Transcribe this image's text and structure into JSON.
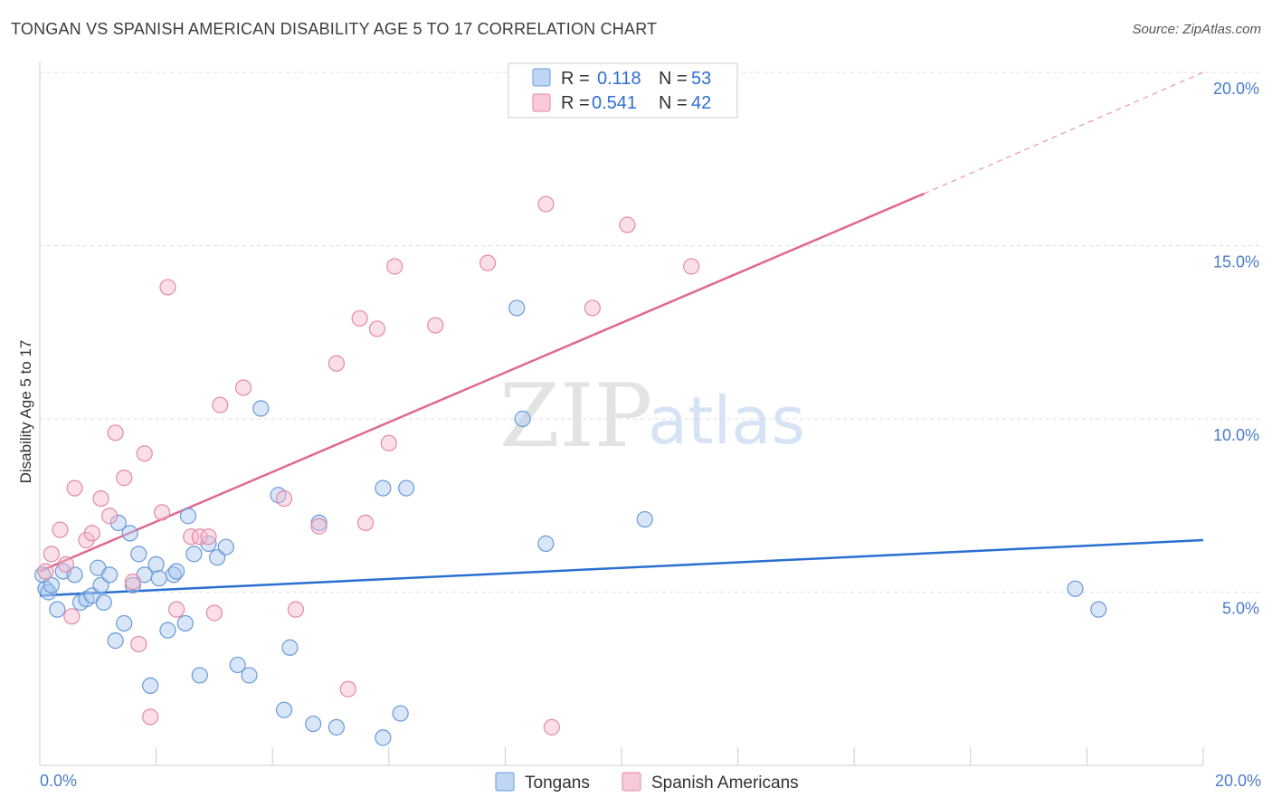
{
  "header": {
    "title": "TONGAN VS SPANISH AMERICAN DISABILITY AGE 5 TO 17 CORRELATION CHART",
    "source": "Source: ZipAtlas.com"
  },
  "watermark": {
    "zip": "ZIP",
    "atlas": "atlas"
  },
  "colors": {
    "tongans_fill": "#a8c8f0",
    "tongans_stroke": "#6a9ad8",
    "tongans_line": "#2a6fd0",
    "spanish_fill": "#f6b8cc",
    "spanish_stroke": "#e38aa6",
    "spanish_line": "#e06890",
    "tick_text": "#4a7cc9"
  },
  "legend": {
    "rows": [
      {
        "r_label": "R =",
        "r_value": "0.118",
        "n_label": "N =",
        "n_value": "53"
      },
      {
        "r_label": "R =",
        "r_value": "0.541",
        "n_label": "N =",
        "n_value": "42"
      }
    ]
  },
  "bottom_legend": {
    "tongans": "Tongans",
    "spanish": "Spanish Americans"
  },
  "chart_data": {
    "type": "scatter",
    "title": "TONGAN VS SPANISH AMERICAN DISABILITY AGE 5 TO 17 CORRELATION CHART",
    "xlabel": "",
    "ylabel": "Disability Age 5 to 17",
    "xlim": [
      0,
      20
    ],
    "ylim": [
      0,
      20
    ],
    "x_tick_labels": [
      "0.0%",
      "20.0%"
    ],
    "y_ticks": [
      5,
      10,
      15,
      20
    ],
    "y_tick_labels": [
      "5.0%",
      "10.0%",
      "15.0%",
      "20.0%"
    ],
    "series": [
      {
        "name": "Tongans",
        "r": 0.118,
        "n": 53,
        "trend": {
          "x0": 0,
          "y0": 4.9,
          "x1": 20,
          "y1": 6.5
        },
        "points": [
          [
            0.1,
            5.1
          ],
          [
            0.15,
            5.0
          ],
          [
            0.3,
            4.5
          ],
          [
            0.4,
            5.6
          ],
          [
            0.6,
            5.5
          ],
          [
            0.7,
            4.7
          ],
          [
            0.8,
            4.8
          ],
          [
            0.9,
            4.9
          ],
          [
            1.0,
            5.7
          ],
          [
            1.05,
            5.2
          ],
          [
            1.1,
            4.7
          ],
          [
            1.2,
            5.5
          ],
          [
            1.3,
            3.6
          ],
          [
            1.35,
            7.0
          ],
          [
            1.45,
            4.1
          ],
          [
            1.55,
            6.7
          ],
          [
            1.6,
            5.2
          ],
          [
            1.7,
            6.1
          ],
          [
            1.8,
            5.5
          ],
          [
            1.9,
            2.3
          ],
          [
            2.0,
            5.8
          ],
          [
            2.05,
            5.4
          ],
          [
            2.2,
            3.9
          ],
          [
            2.3,
            5.5
          ],
          [
            2.35,
            5.6
          ],
          [
            2.5,
            4.1
          ],
          [
            2.55,
            7.2
          ],
          [
            2.65,
            6.1
          ],
          [
            2.75,
            2.6
          ],
          [
            2.9,
            6.4
          ],
          [
            3.05,
            6.0
          ],
          [
            3.2,
            6.3
          ],
          [
            3.4,
            2.9
          ],
          [
            3.6,
            2.6
          ],
          [
            3.8,
            10.3
          ],
          [
            4.1,
            7.8
          ],
          [
            4.2,
            1.6
          ],
          [
            4.3,
            3.4
          ],
          [
            4.7,
            1.2
          ],
          [
            4.8,
            7.0
          ],
          [
            5.1,
            1.1
          ],
          [
            5.9,
            8.0
          ],
          [
            5.9,
            0.8
          ],
          [
            6.2,
            1.5
          ],
          [
            6.3,
            8.0
          ],
          [
            8.2,
            13.2
          ],
          [
            8.3,
            10.0
          ],
          [
            8.7,
            6.4
          ],
          [
            10.4,
            7.1
          ],
          [
            17.8,
            5.1
          ],
          [
            18.2,
            4.5
          ],
          [
            0.05,
            5.5
          ],
          [
            0.2,
            5.2
          ]
        ]
      },
      {
        "name": "Spanish Americans",
        "r": 0.541,
        "n": 42,
        "trend": {
          "x0": 0,
          "y0": 5.6,
          "x1": 15.2,
          "y1": 16.5,
          "dash_to_x": 20,
          "dash_to_y": 20.0
        },
        "points": [
          [
            0.1,
            5.6
          ],
          [
            0.2,
            6.1
          ],
          [
            0.35,
            6.8
          ],
          [
            0.45,
            5.8
          ],
          [
            0.55,
            4.3
          ],
          [
            0.6,
            8.0
          ],
          [
            0.8,
            6.5
          ],
          [
            0.9,
            6.7
          ],
          [
            1.05,
            7.7
          ],
          [
            1.2,
            7.2
          ],
          [
            1.3,
            9.6
          ],
          [
            1.45,
            8.3
          ],
          [
            1.6,
            5.3
          ],
          [
            1.7,
            3.5
          ],
          [
            1.8,
            9.0
          ],
          [
            1.9,
            1.4
          ],
          [
            2.1,
            7.3
          ],
          [
            2.2,
            13.8
          ],
          [
            2.35,
            4.5
          ],
          [
            2.6,
            6.6
          ],
          [
            2.75,
            6.6
          ],
          [
            2.9,
            6.6
          ],
          [
            3.0,
            4.4
          ],
          [
            3.1,
            10.4
          ],
          [
            3.5,
            10.9
          ],
          [
            4.2,
            7.7
          ],
          [
            4.4,
            4.5
          ],
          [
            4.8,
            6.9
          ],
          [
            5.1,
            11.6
          ],
          [
            5.3,
            2.2
          ],
          [
            5.5,
            12.9
          ],
          [
            5.6,
            7.0
          ],
          [
            5.8,
            12.6
          ],
          [
            6.0,
            9.3
          ],
          [
            6.1,
            14.4
          ],
          [
            6.8,
            12.7
          ],
          [
            7.7,
            14.5
          ],
          [
            8.7,
            16.2
          ],
          [
            8.8,
            1.1
          ],
          [
            9.5,
            13.2
          ],
          [
            10.1,
            15.6
          ],
          [
            11.2,
            14.4
          ]
        ]
      }
    ]
  }
}
